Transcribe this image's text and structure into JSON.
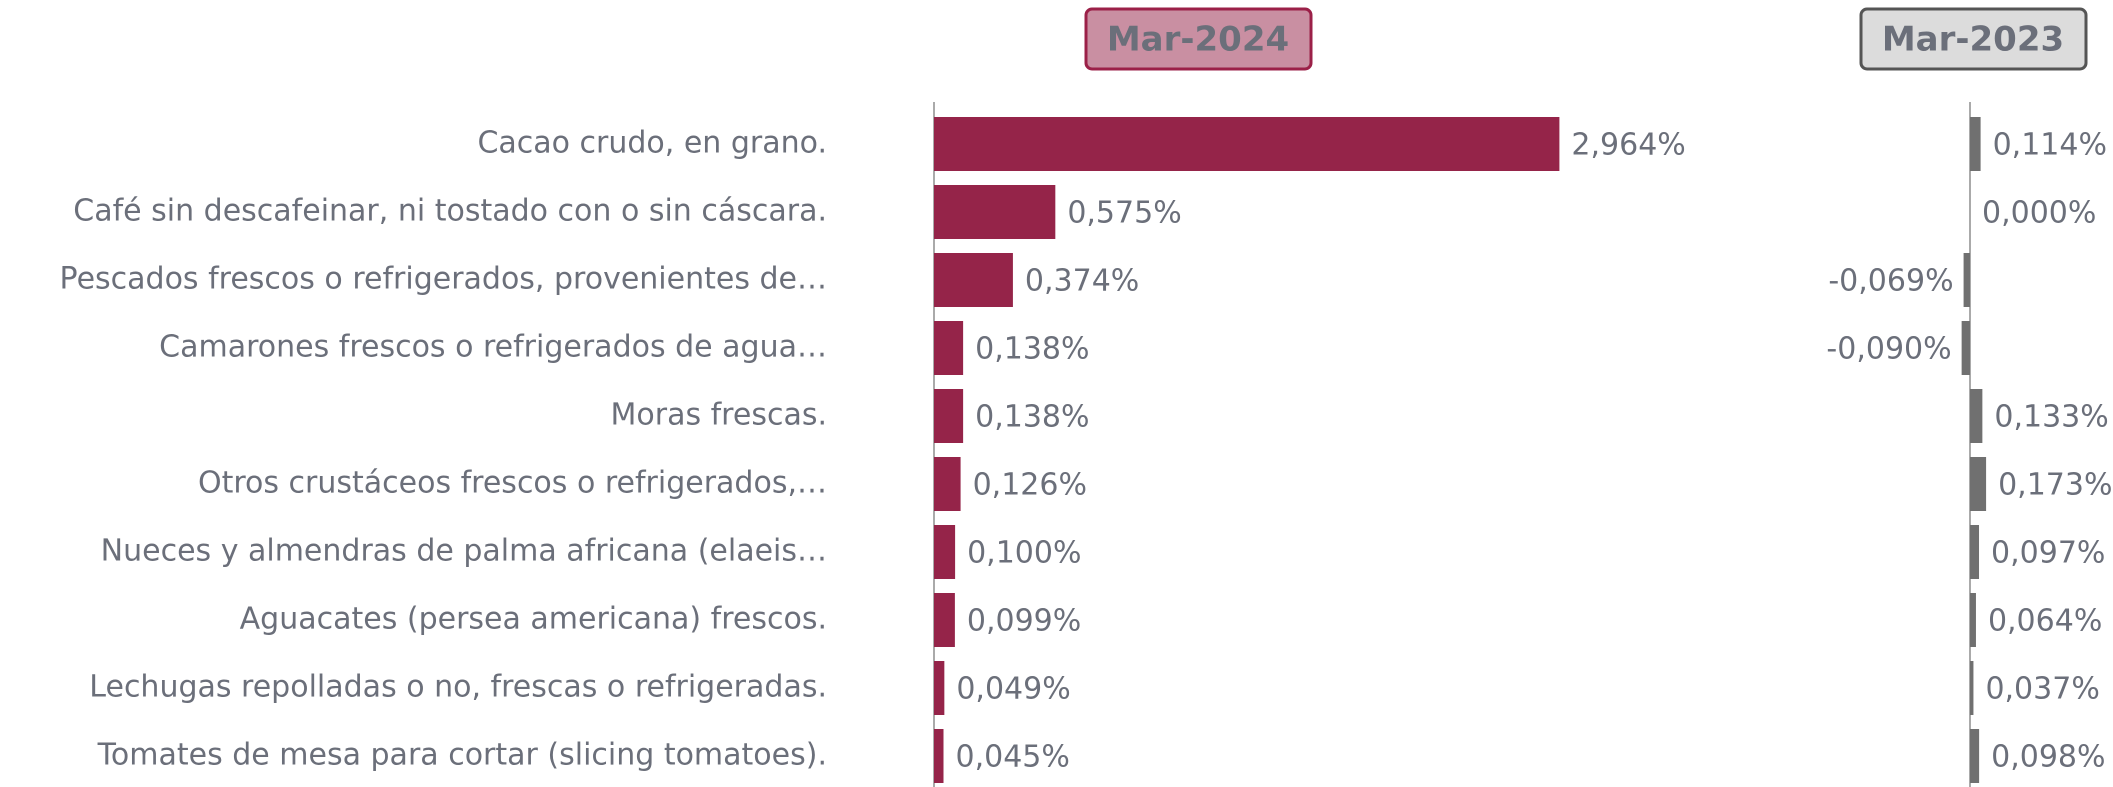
{
  "chart_data": [
    {
      "type": "bar",
      "orientation": "horizontal",
      "title": "Mar-2024",
      "color": "#952449",
      "categories": [
        "Cacao crudo, en grano.",
        "Café sin descafeinar, ni tostado con o sin cáscara.",
        "Pescados frescos o refrigerados, provenientes de…",
        "Camarones frescos o refrigerados de agua…",
        "Moras frescas.",
        "Otros crustáceos frescos o refrigerados,…",
        "Nueces y almendras de palma africana (elaeis…",
        "Aguacates (persea americana) frescos.",
        "Lechugas repolladas o no, frescas o refrigeradas.",
        "Tomates de mesa para cortar (slicing tomatoes)."
      ],
      "values": [
        2.964,
        0.575,
        0.374,
        0.138,
        0.138,
        0.126,
        0.1,
        0.099,
        0.049,
        0.045
      ],
      "value_labels": [
        "2,964%",
        "0,575%",
        "0,374%",
        "0,138%",
        "0,138%",
        "0,126%",
        "0,100%",
        "0,099%",
        "0,049%",
        "0,045%"
      ],
      "xlim": [
        0,
        4
      ]
    },
    {
      "type": "bar",
      "orientation": "horizontal",
      "title": "Mar-2023",
      "color": "#707070",
      "values": [
        0.114,
        0.0,
        -0.069,
        -0.09,
        0.133,
        0.173,
        0.097,
        0.064,
        0.037,
        0.098
      ],
      "value_labels": [
        "0,114%",
        "0,000%",
        "-0,069%",
        "-0,090%",
        "0,133%",
        "0,173%",
        "0,097%",
        "0,064%",
        "0,037%",
        "0,098%"
      ],
      "xlim": [
        -1,
        1
      ]
    }
  ]
}
